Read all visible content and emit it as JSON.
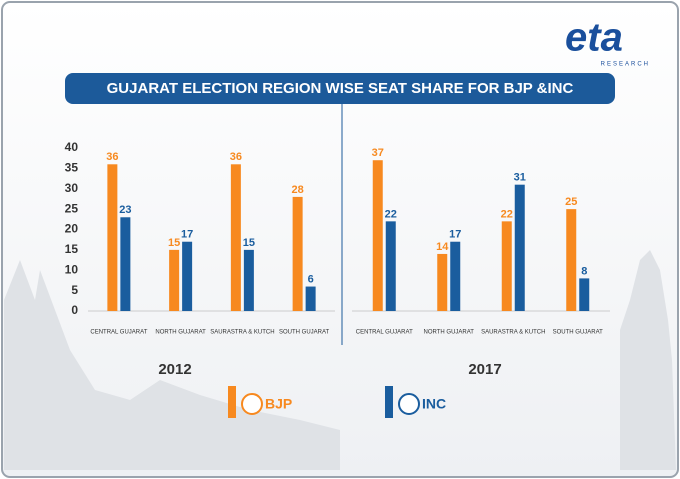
{
  "logo": {
    "text": "eta",
    "sub": "RESEARCH"
  },
  "title": "GUJARAT ELECTION REGION WISE SEAT SHARE FOR BJP &INC",
  "chart_data": [
    {
      "type": "bar",
      "title": "2012",
      "categories": [
        "CENTRAL GUJARAT",
        "NORTH GUJARAT",
        "SAURASTRA & KUTCH",
        "SOUTH GUJARAT"
      ],
      "series": [
        {
          "name": "BJP",
          "color": "#f7891f",
          "values": [
            36,
            15,
            36,
            28
          ]
        },
        {
          "name": "INC",
          "color": "#1a5d9e",
          "values": [
            23,
            17,
            15,
            6
          ]
        }
      ],
      "ylim": [
        0,
        40
      ],
      "yticks": [
        0,
        5,
        10,
        15,
        20,
        25,
        30,
        35,
        40
      ]
    },
    {
      "type": "bar",
      "title": "2017",
      "categories": [
        "CENTRAL GUJARAT",
        "NORTH GUJARAT",
        "SAURASTRA & KUTCH",
        "SOUTH GUJARAT"
      ],
      "series": [
        {
          "name": "BJP",
          "color": "#f7891f",
          "values": [
            37,
            14,
            22,
            25
          ]
        },
        {
          "name": "INC",
          "color": "#1a5d9e",
          "values": [
            22,
            17,
            31,
            8
          ]
        }
      ],
      "ylim": [
        0,
        40
      ]
    }
  ]
}
